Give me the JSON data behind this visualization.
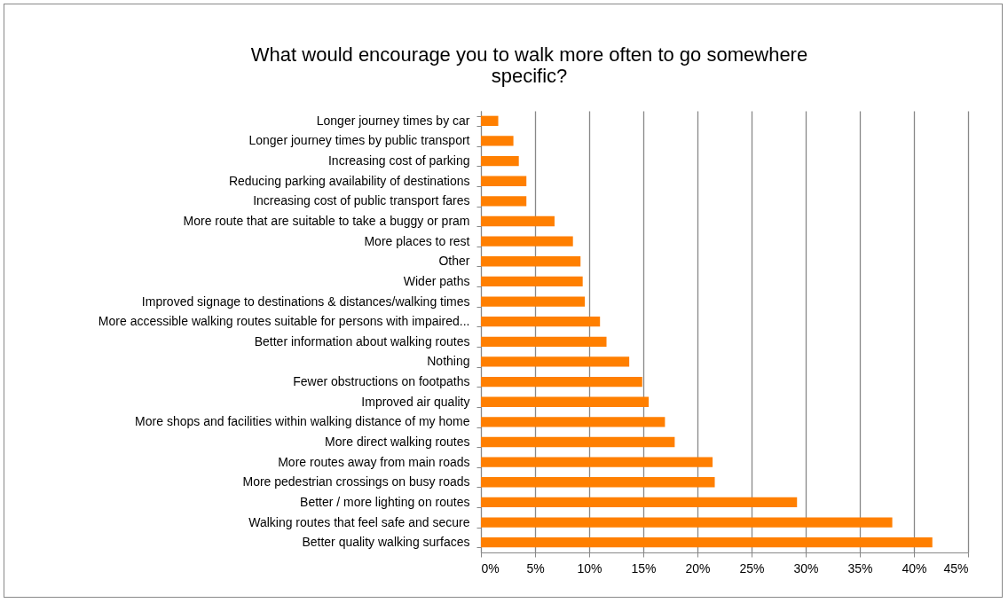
{
  "chart_data": {
    "type": "bar",
    "orientation": "horizontal",
    "title": "What would encourage you to walk more often to go somewhere specific?",
    "categories": [
      "Longer journey times by car",
      "Longer journey times by public transport",
      "Increasing cost of parking",
      "Reducing parking availability of destinations",
      "Increasing cost of public transport fares",
      "More route that are suitable to take a buggy or pram",
      "More places to rest",
      "Other",
      "Wider paths",
      "Improved signage to destinations & distances/walking times",
      "More accessible walking routes suitable for persons with impaired...",
      "Better information about walking routes",
      "Nothing",
      "Fewer obstructions on footpaths",
      "Improved air quality",
      "More shops and facilities within walking distance of my home",
      "More direct walking routes",
      "More routes away from main roads",
      "More pedestrian crossings on busy roads",
      "Better / more lighting on routes",
      "Walking routes that feel safe and secure",
      "Better quality walking surfaces"
    ],
    "values": [
      1.6,
      3.0,
      3.5,
      4.2,
      4.2,
      6.8,
      8.5,
      9.2,
      9.4,
      9.6,
      11.0,
      11.6,
      13.7,
      14.9,
      15.5,
      17.0,
      17.9,
      21.4,
      21.6,
      29.2,
      38.0,
      41.7
    ],
    "color": "#ff7f00",
    "xlim": [
      0,
      45
    ],
    "xticks": [
      {
        "value": 0,
        "label": "0%"
      },
      {
        "value": 5,
        "label": "5%"
      },
      {
        "value": 10,
        "label": "10%"
      },
      {
        "value": 15,
        "label": "15%"
      },
      {
        "value": 20,
        "label": "20%"
      },
      {
        "value": 25,
        "label": "25%"
      },
      {
        "value": 30,
        "label": "30%"
      },
      {
        "value": 35,
        "label": "35%"
      },
      {
        "value": 40,
        "label": "40%"
      },
      {
        "value": 45,
        "label": "45%"
      }
    ],
    "grid": "x"
  }
}
